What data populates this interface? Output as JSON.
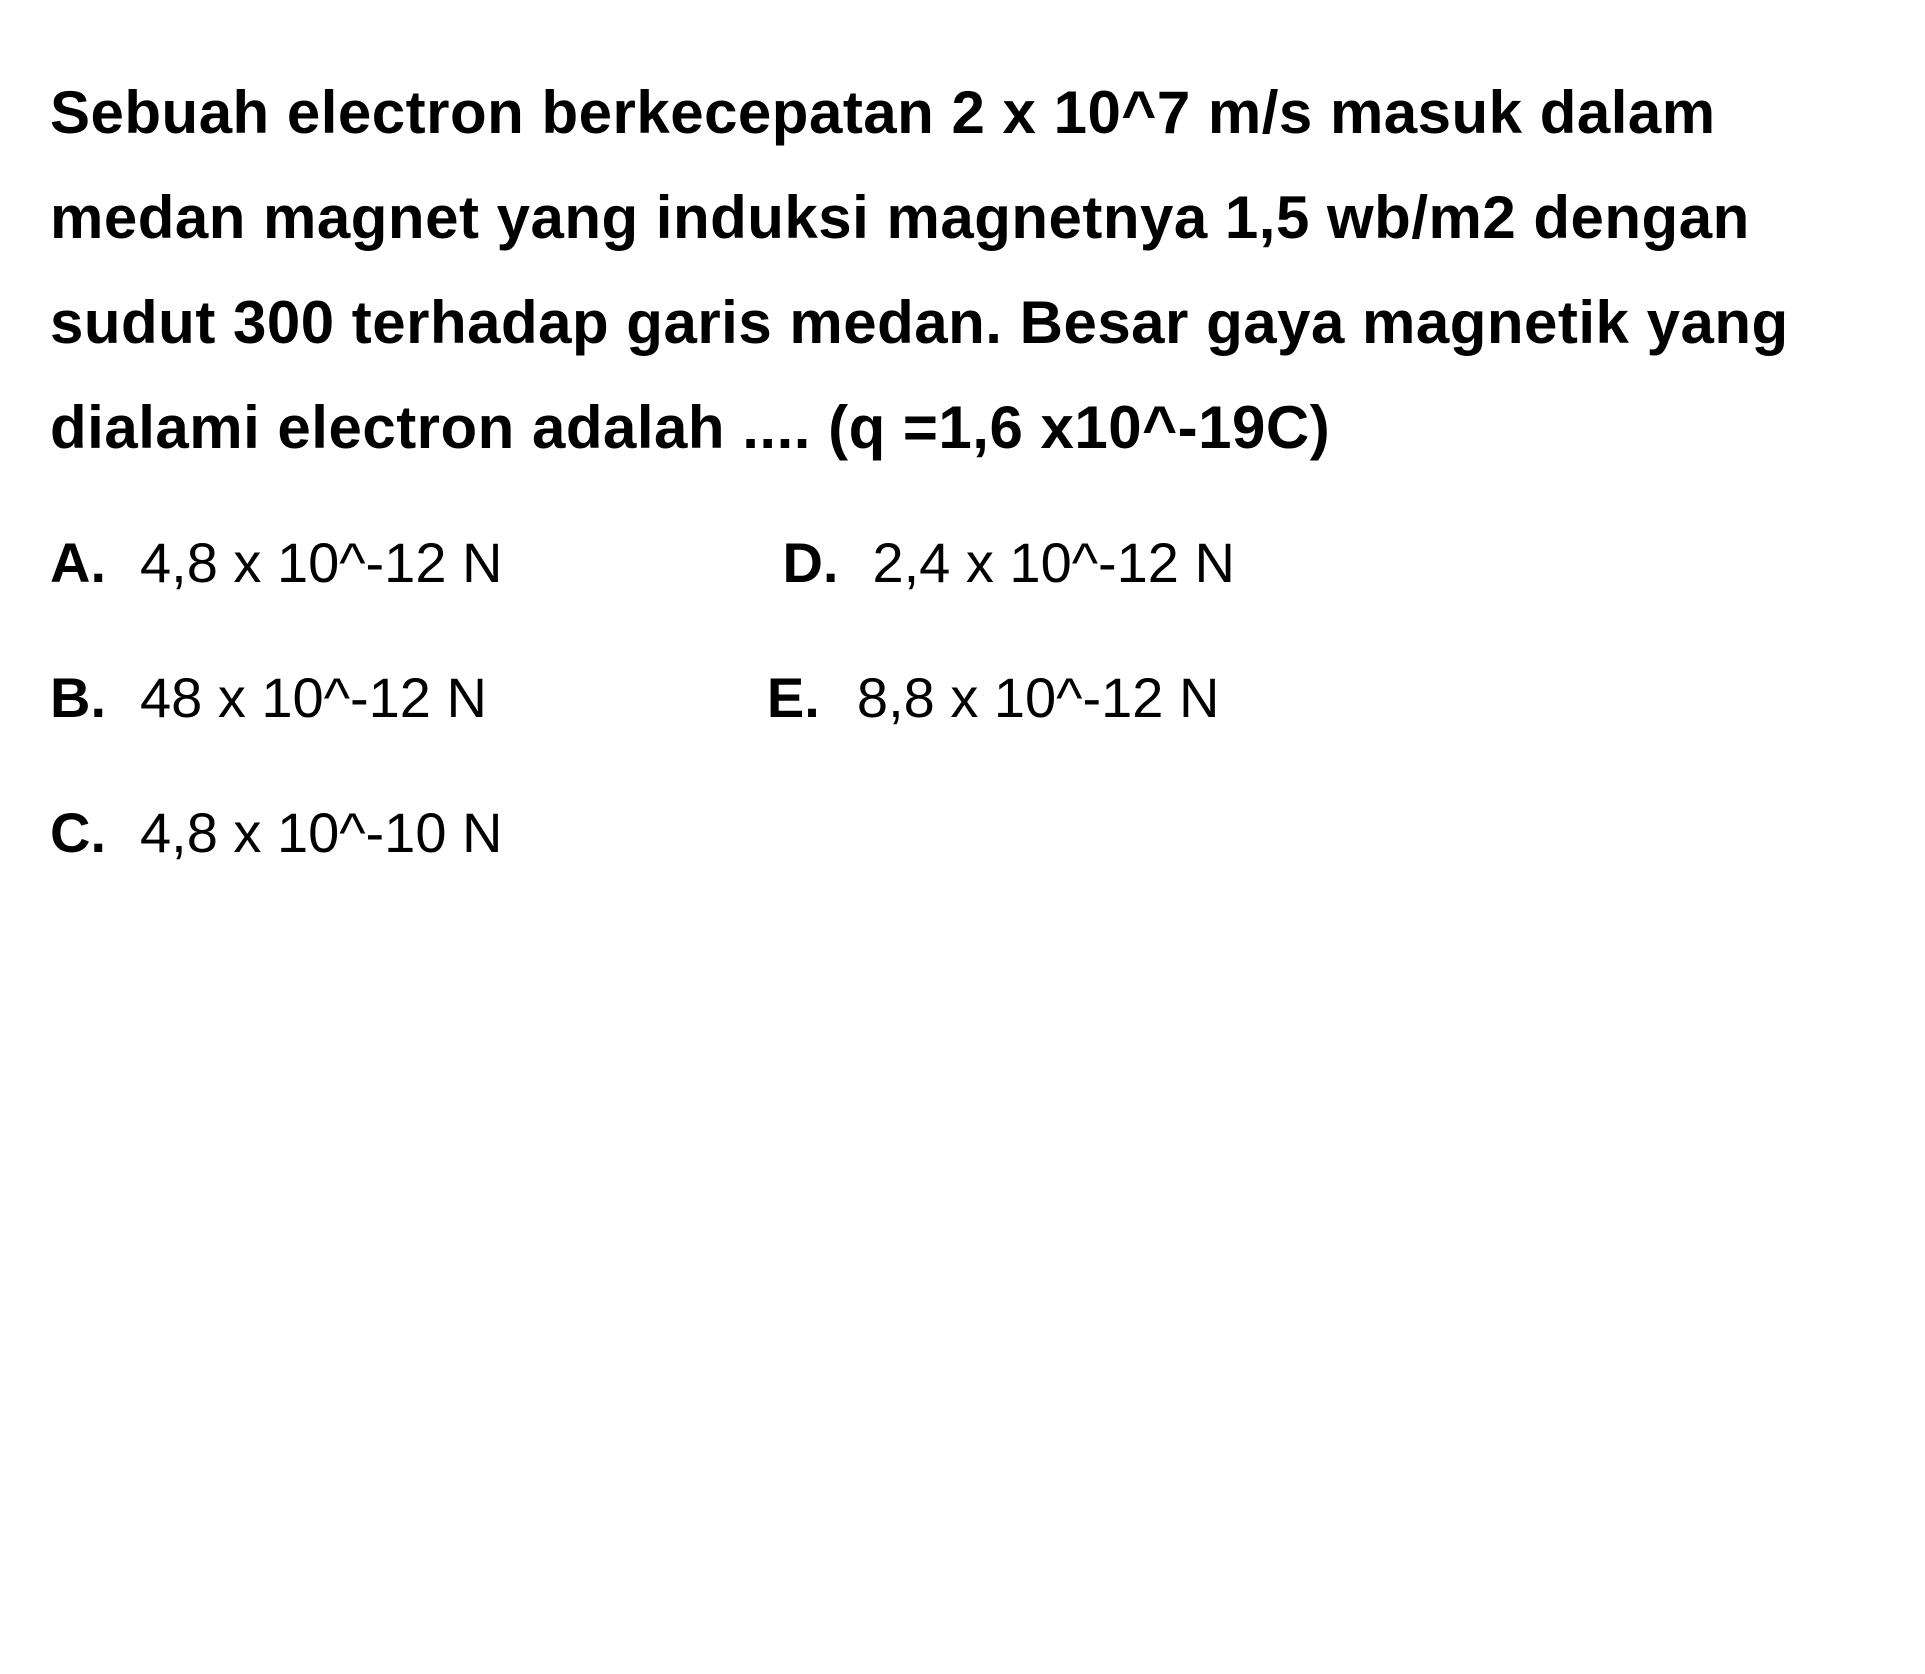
{
  "question": {
    "text": "Sebuah electron berkecepatan 2 x 10^7 m/s masuk dalam medan magnet yang induksi magnetnya 1,5 wb/m2 dengan sudut 300 terhadap garis medan. Besar gaya magnetik yang dialami electron adalah .... (q =1,6 x10^-19C)"
  },
  "options": {
    "a": {
      "letter": "A.",
      "text": "4,8 x 10^-12 N"
    },
    "b": {
      "letter": "B.",
      "text": "48 x 10^-12 N"
    },
    "c": {
      "letter": "C.",
      "text": "4,8 x 10^-10 N"
    },
    "d": {
      "letter": "D.",
      "text": "2,4 x 10^-12 N"
    },
    "e": {
      "letter": "E.",
      "text": "8,8 x 10^-12 N"
    }
  },
  "styling": {
    "background_color": "#ffffff",
    "text_color": "#000000",
    "question_fontsize": 60,
    "option_fontsize": 56,
    "question_fontweight": 600,
    "letter_fontweight": 700,
    "option_fontweight": 500,
    "line_height": 1.75
  }
}
